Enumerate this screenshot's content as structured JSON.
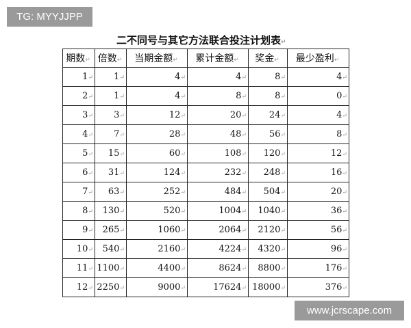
{
  "watermarks": {
    "top_left": "TG: MYYJJPP",
    "bottom_right": "www.jcrscape.com"
  },
  "title": "二不同号与其它方法联合投注计划表",
  "return_mark": "↵",
  "headers": [
    "期数",
    "倍数",
    "当期金额",
    "累计金额",
    "奖金",
    "最少盈利"
  ],
  "rows": [
    [
      "1",
      "1",
      "4",
      "4",
      "8",
      "4"
    ],
    [
      "2",
      "1",
      "4",
      "8",
      "8",
      "0"
    ],
    [
      "3",
      "3",
      "12",
      "20",
      "24",
      "4"
    ],
    [
      "4",
      "7",
      "28",
      "48",
      "56",
      "8"
    ],
    [
      "5",
      "15",
      "60",
      "108",
      "120",
      "12"
    ],
    [
      "6",
      "31",
      "124",
      "232",
      "248",
      "16"
    ],
    [
      "7",
      "63",
      "252",
      "484",
      "504",
      "20"
    ],
    [
      "8",
      "130",
      "520",
      "1004",
      "1040",
      "36"
    ],
    [
      "9",
      "265",
      "1060",
      "2064",
      "2120",
      "56"
    ],
    [
      "10",
      "540",
      "2160",
      "4224",
      "4320",
      "96"
    ],
    [
      "11",
      "1100",
      "4400",
      "8624",
      "8800",
      "176"
    ],
    [
      "12",
      "2250",
      "9000",
      "17624",
      "18000",
      "376"
    ]
  ]
}
